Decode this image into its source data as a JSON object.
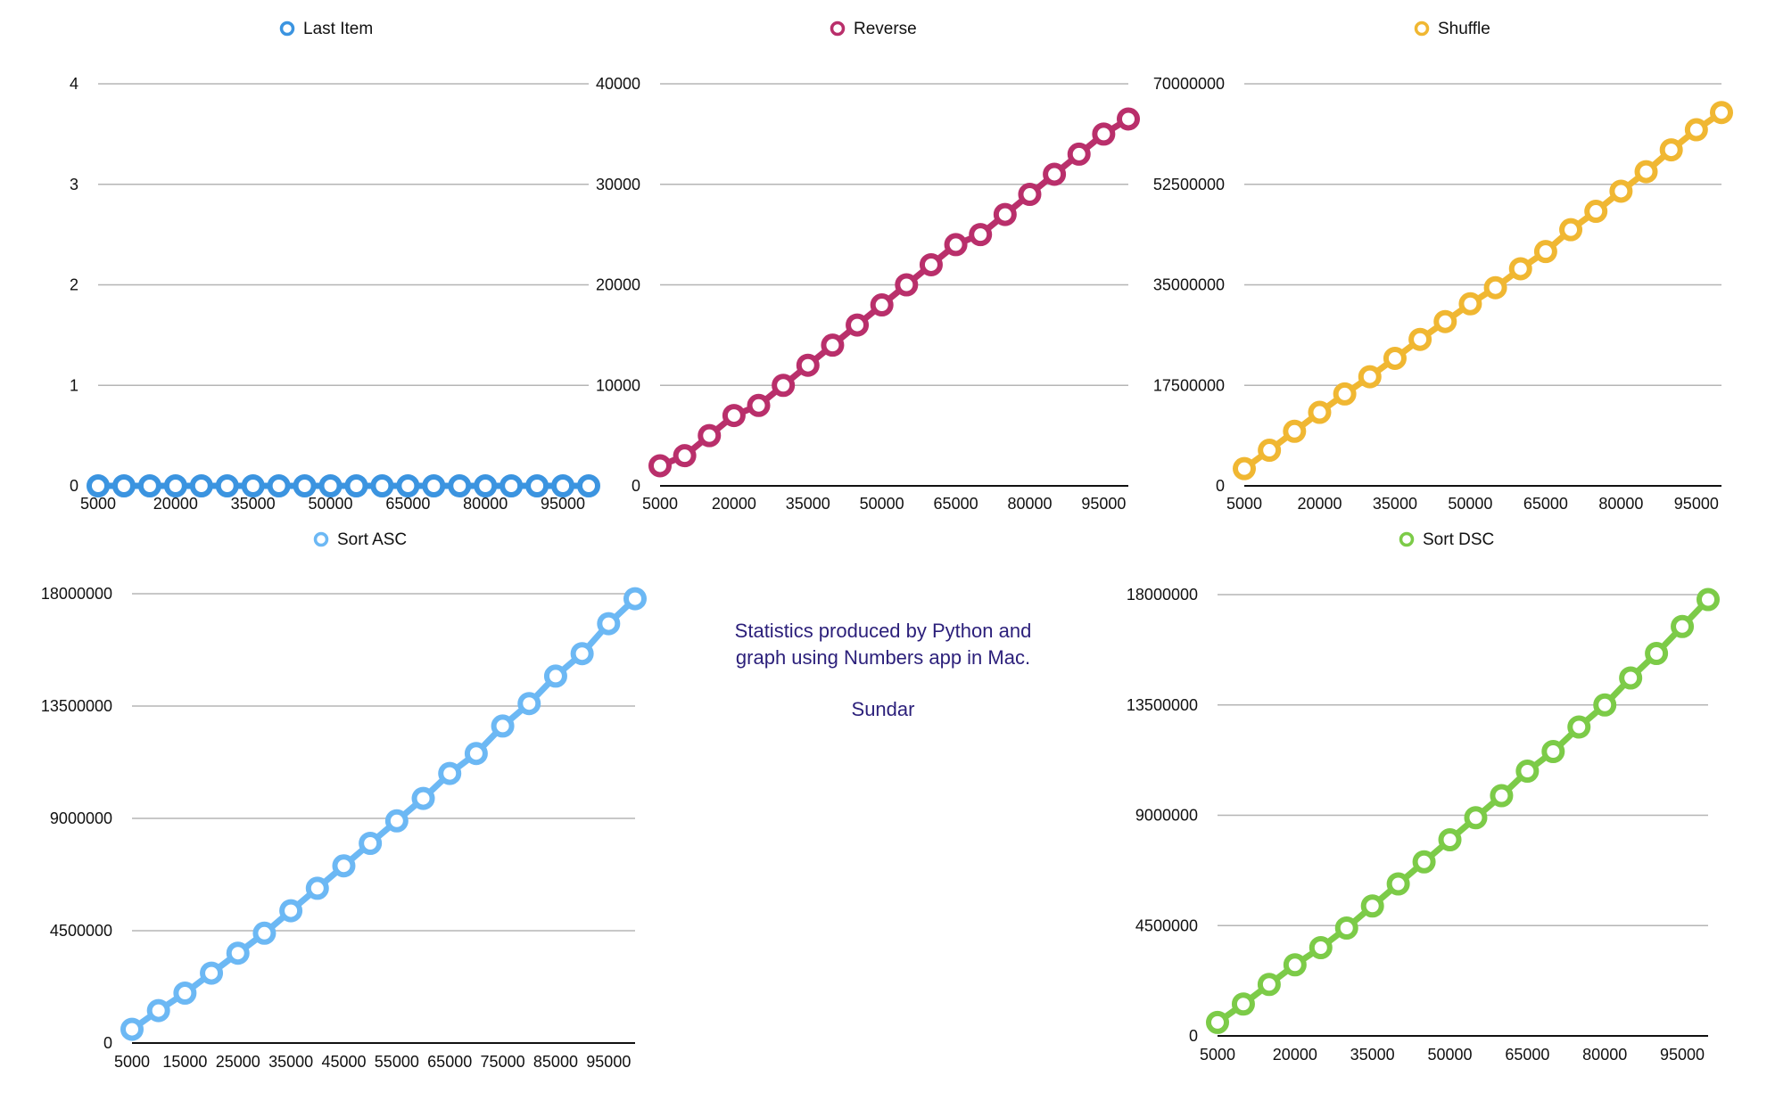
{
  "chart_data": [
    {
      "type": "line",
      "series": [
        {
          "name": "Last Item",
          "values": [
            0,
            0,
            0,
            0,
            0,
            0,
            0,
            0,
            0,
            0,
            0,
            0,
            0,
            0,
            0,
            0,
            0,
            0,
            0,
            0
          ]
        }
      ],
      "x": [
        5000,
        10000,
        15000,
        20000,
        25000,
        30000,
        35000,
        40000,
        45000,
        50000,
        55000,
        60000,
        65000,
        70000,
        75000,
        80000,
        85000,
        90000,
        95000,
        100000
      ],
      "ylim": [
        0,
        4
      ],
      "yticks": [
        "0",
        "1",
        "2",
        "3",
        "4"
      ],
      "xticks": [
        "5000",
        "20000",
        "35000",
        "50000",
        "65000",
        "80000",
        "95000"
      ],
      "color": "#3b94e0",
      "legend": "top-center",
      "grid": true
    },
    {
      "type": "line",
      "series": [
        {
          "name": "Reverse",
          "values": [
            2000,
            3000,
            5000,
            7000,
            8000,
            10000,
            12000,
            14000,
            16000,
            18000,
            20000,
            22000,
            24000,
            25000,
            27000,
            29000,
            31000,
            33000,
            35000,
            36500
          ]
        }
      ],
      "x": [
        5000,
        10000,
        15000,
        20000,
        25000,
        30000,
        35000,
        40000,
        45000,
        50000,
        55000,
        60000,
        65000,
        70000,
        75000,
        80000,
        85000,
        90000,
        95000,
        100000
      ],
      "ylim": [
        0,
        40000
      ],
      "yticks": [
        "0",
        "10000",
        "20000",
        "30000",
        "40000"
      ],
      "xticks": [
        "5000",
        "20000",
        "35000",
        "50000",
        "65000",
        "80000",
        "95000"
      ],
      "color": "#b92f6b",
      "legend": "top-center",
      "grid": true
    },
    {
      "type": "line",
      "series": [
        {
          "name": "Shuffle",
          "values": [
            3000000,
            6200000,
            9500000,
            12800000,
            16000000,
            19000000,
            22200000,
            25500000,
            28600000,
            31700000,
            34500000,
            37800000,
            40800000,
            44600000,
            47800000,
            51300000,
            54700000,
            58500000,
            62000000,
            65000000
          ]
        }
      ],
      "x": [
        5000,
        10000,
        15000,
        20000,
        25000,
        30000,
        35000,
        40000,
        45000,
        50000,
        55000,
        60000,
        65000,
        70000,
        75000,
        80000,
        85000,
        90000,
        95000,
        100000
      ],
      "ylim": [
        0,
        70000000
      ],
      "yticks": [
        "0",
        "17500000",
        "35000000",
        "52500000",
        "70000000"
      ],
      "xticks": [
        "5000",
        "20000",
        "35000",
        "50000",
        "65000",
        "80000",
        "95000"
      ],
      "color": "#f0b732",
      "legend": "top-center",
      "grid": true
    },
    {
      "type": "line",
      "series": [
        {
          "name": "Sort ASC",
          "values": [
            550000,
            1300000,
            2000000,
            2800000,
            3600000,
            4400000,
            5300000,
            6200000,
            7100000,
            8000000,
            8900000,
            9800000,
            10800000,
            11600000,
            12700000,
            13600000,
            14700000,
            15600000,
            16800000,
            17800000
          ]
        }
      ],
      "x": [
        5000,
        10000,
        15000,
        20000,
        25000,
        30000,
        35000,
        40000,
        45000,
        50000,
        55000,
        60000,
        65000,
        70000,
        75000,
        80000,
        85000,
        90000,
        95000,
        100000
      ],
      "ylim": [
        0,
        18000000
      ],
      "yticks": [
        "0",
        "4500000",
        "9000000",
        "13500000",
        "18000000"
      ],
      "xticks": [
        "5000",
        "15000",
        "25000",
        "35000",
        "45000",
        "55000",
        "65000",
        "75000",
        "85000",
        "95000"
      ],
      "color": "#6cb8f4",
      "legend": "top-center",
      "grid": true
    },
    {
      "type": "line",
      "series": [
        {
          "name": "Sort DSC",
          "values": [
            550000,
            1300000,
            2100000,
            2900000,
            3600000,
            4400000,
            5300000,
            6200000,
            7100000,
            8000000,
            8900000,
            9800000,
            10800000,
            11600000,
            12600000,
            13500000,
            14600000,
            15600000,
            16700000,
            17800000
          ]
        }
      ],
      "x": [
        5000,
        10000,
        15000,
        20000,
        25000,
        30000,
        35000,
        40000,
        45000,
        50000,
        55000,
        60000,
        65000,
        70000,
        75000,
        80000,
        85000,
        90000,
        95000,
        100000
      ],
      "ylim": [
        0,
        18000000
      ],
      "yticks": [
        "0",
        "4500000",
        "9000000",
        "13500000",
        "18000000"
      ],
      "xticks": [
        "5000",
        "20000",
        "35000",
        "50000",
        "65000",
        "80000",
        "95000"
      ],
      "color": "#7ccb48",
      "legend": "top-center",
      "grid": true
    }
  ],
  "note": {
    "line1": "Statistics produced by Python and",
    "line2": "graph using Numbers app in Mac.",
    "author": "Sundar"
  }
}
